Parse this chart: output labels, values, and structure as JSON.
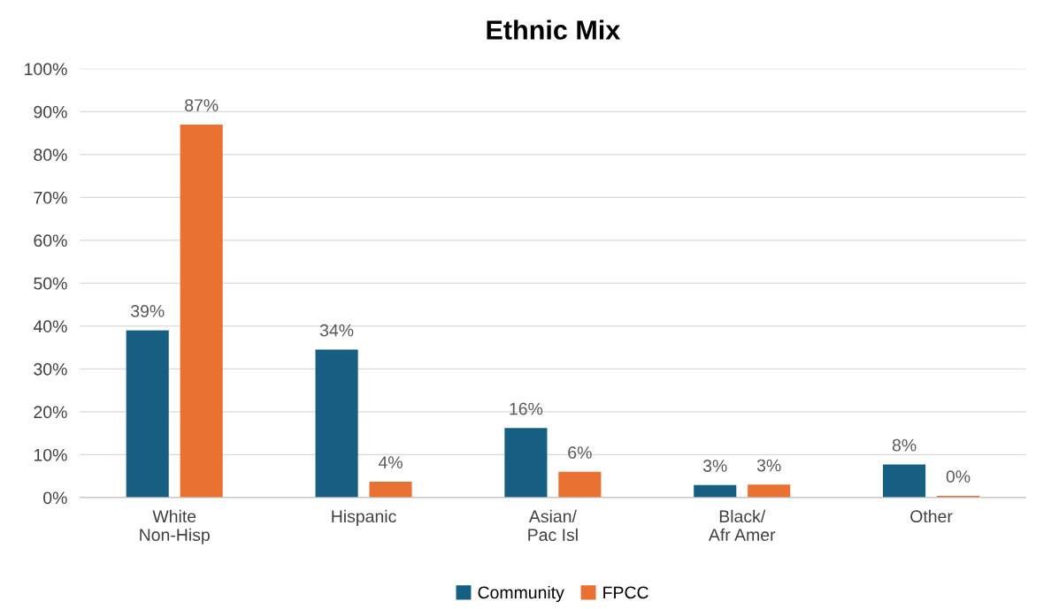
{
  "chart_data": {
    "type": "bar",
    "title": "Ethnic Mix",
    "categories": [
      "White\nNon-Hisp",
      "Hispanic",
      "Asian/\nPac Isl",
      "Black/\nAfr Amer",
      "Other"
    ],
    "series": [
      {
        "name": "Community",
        "color": "#175e83",
        "values": [
          39,
          34.5,
          16.2,
          2.9,
          7.7
        ],
        "value_labels": [
          "39%",
          "34%",
          "16%",
          "3%",
          "8%"
        ]
      },
      {
        "name": "FPCC",
        "color": "#e97132",
        "values": [
          87,
          3.7,
          6,
          3,
          0.4
        ],
        "value_labels": [
          "87%",
          "4%",
          "6%",
          "3%",
          "0%"
        ]
      }
    ],
    "ylim": [
      0,
      100
    ],
    "yticks": [
      {
        "value": 0,
        "label": "0%"
      },
      {
        "value": 10,
        "label": "10%"
      },
      {
        "value": 20,
        "label": "20%"
      },
      {
        "value": 30,
        "label": "30%"
      },
      {
        "value": 40,
        "label": "40%"
      },
      {
        "value": 50,
        "label": "50%"
      },
      {
        "value": 60,
        "label": "60%"
      },
      {
        "value": 70,
        "label": "70%"
      },
      {
        "value": 80,
        "label": "80%"
      },
      {
        "value": 90,
        "label": "90%"
      },
      {
        "value": 100,
        "label": "100%"
      }
    ],
    "grid": "y",
    "legend": "bottom"
  }
}
